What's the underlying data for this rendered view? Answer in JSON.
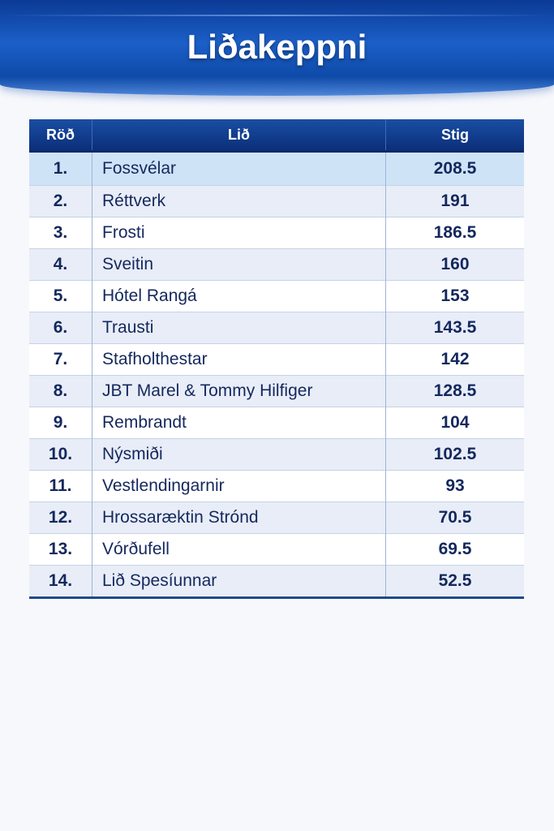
{
  "title": "Liðakeppni",
  "table": {
    "headers": {
      "rank": "Röð",
      "team": "Lið",
      "score": "Stig"
    },
    "rows": [
      {
        "rank": "1.",
        "team": "Fossvélar",
        "score": "208.5"
      },
      {
        "rank": "2.",
        "team": "Réttverk",
        "score": "191"
      },
      {
        "rank": "3.",
        "team": "Frosti",
        "score": "186.5"
      },
      {
        "rank": "4.",
        "team": "Sveitin",
        "score": "160"
      },
      {
        "rank": "5.",
        "team": "Hótel Rangá",
        "score": "153"
      },
      {
        "rank": "6.",
        "team": "Trausti",
        "score": "143.5"
      },
      {
        "rank": "7.",
        "team": "Stafholthestar",
        "score": "142"
      },
      {
        "rank": "8.",
        "team": "JBT Marel & Tommy Hilfiger",
        "score": "128.5"
      },
      {
        "rank": "9.",
        "team": "Rembrandt",
        "score": "104"
      },
      {
        "rank": "10.",
        "team": "Nýsmiði",
        "score": "102.5"
      },
      {
        "rank": "11.",
        "team": "Vestlendingarnir",
        "score": "93"
      },
      {
        "rank": "12.",
        "team": "Hrossaræktin Strónd",
        "score": "70.5"
      },
      {
        "rank": "13.",
        "team": "Vórðufell",
        "score": "69.5"
      },
      {
        "rank": "14.",
        "team": "Lið Spesíunnar",
        "score": "52.5"
      }
    ]
  }
}
